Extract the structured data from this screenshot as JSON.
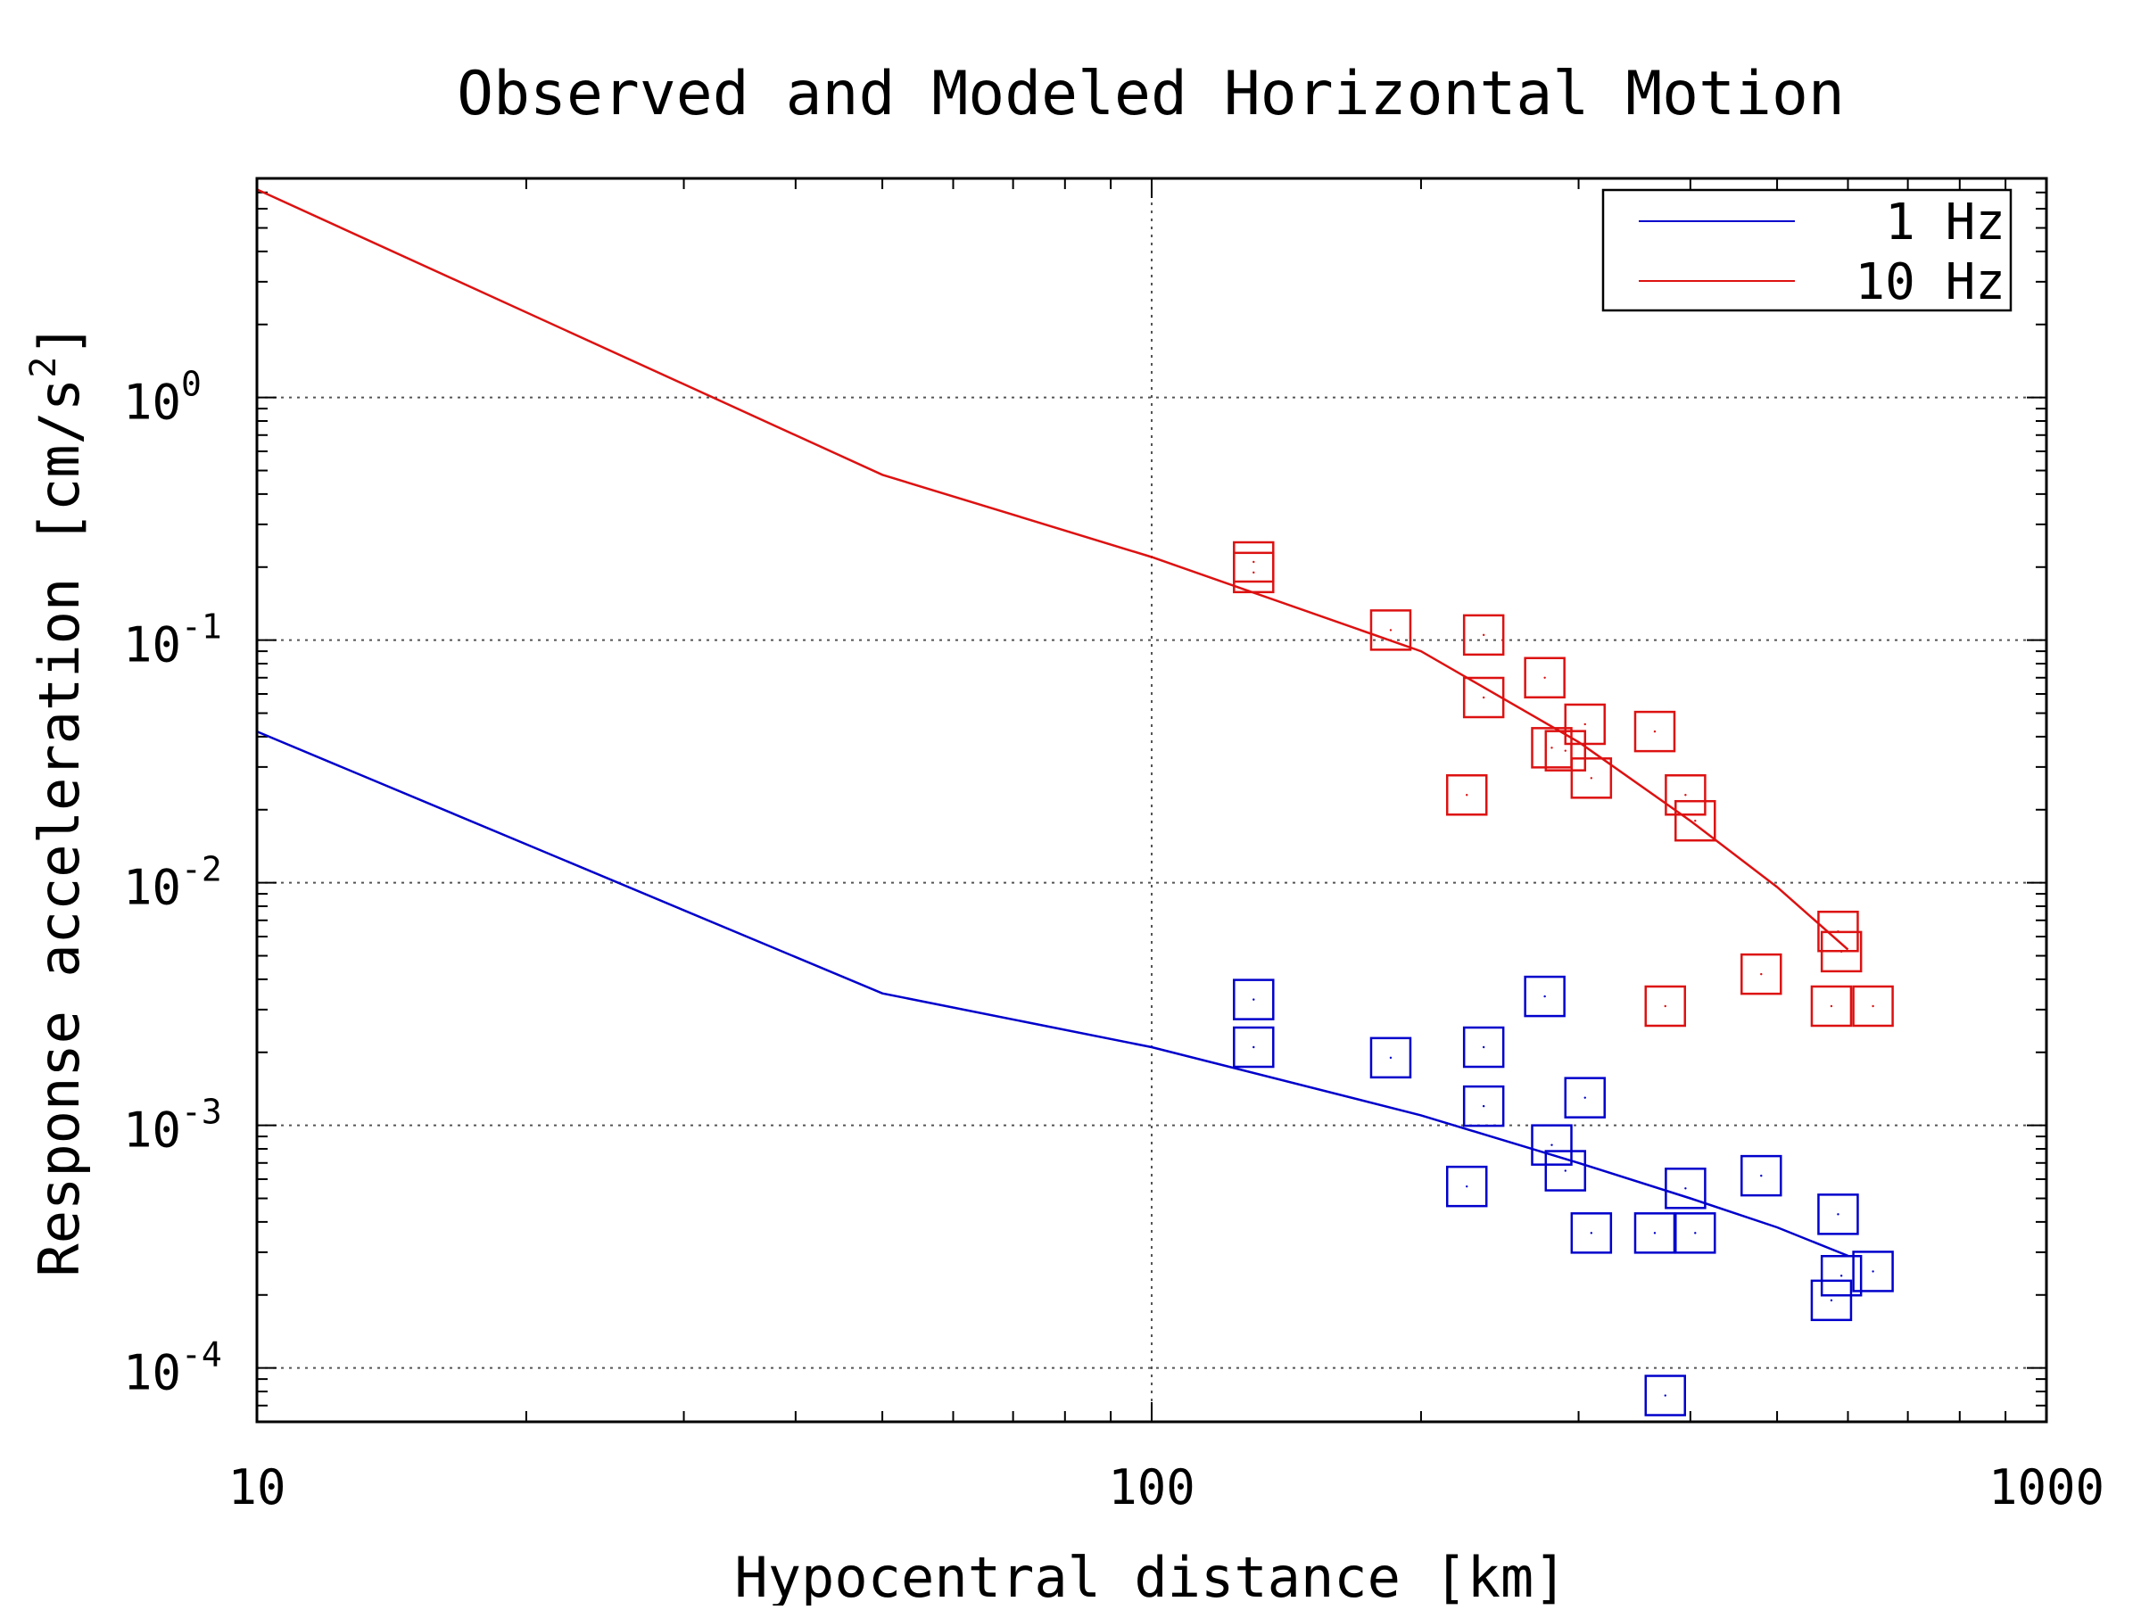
{
  "chart_data": {
    "type": "scatter",
    "title": "Observed and Modeled Horizontal Motion",
    "xlabel": "Hypocentral distance [km]",
    "ylabel_main": "Response acceleration [cm/s",
    "ylabel_sup": "2",
    "ylabel_close": "]",
    "x_scale": "log",
    "y_scale": "log",
    "xlim": [
      10,
      1000
    ],
    "ylim": [
      6e-05,
      8
    ],
    "x_ticks": [
      {
        "value": 10,
        "label": "10"
      },
      {
        "value": 100,
        "label": "100"
      },
      {
        "value": 1000,
        "label": "1000"
      }
    ],
    "y_ticks": [
      {
        "value": 0.0001,
        "base": "10",
        "exp": "-4"
      },
      {
        "value": 0.001,
        "base": "10",
        "exp": "-3"
      },
      {
        "value": 0.01,
        "base": "10",
        "exp": "-2"
      },
      {
        "value": 0.1,
        "base": "10",
        "exp": "-1"
      },
      {
        "value": 1,
        "base": "10",
        "exp": "0"
      }
    ],
    "grid": "dotted, at major ticks",
    "legend_position": "top-right",
    "series": [
      {
        "name": "1 Hz",
        "color": "#0000cc",
        "model_line": [
          [
            10,
            0.042
          ],
          [
            50,
            0.0035
          ],
          [
            100,
            0.0021
          ],
          [
            200,
            0.0011
          ],
          [
            300,
            0.0007
          ],
          [
            400,
            0.0005
          ],
          [
            500,
            0.00038
          ],
          [
            600,
            0.00029
          ]
        ],
        "observed": [
          [
            130,
            0.0033
          ],
          [
            130,
            0.0021
          ],
          [
            185,
            0.0019
          ],
          [
            225,
            0.00056
          ],
          [
            235,
            0.0021
          ],
          [
            235,
            0.0012
          ],
          [
            275,
            0.0034
          ],
          [
            280,
            0.00083
          ],
          [
            290,
            0.00065
          ],
          [
            305,
            0.0013
          ],
          [
            310,
            0.00036
          ],
          [
            365,
            0.00036
          ],
          [
            375,
            7.7e-05
          ],
          [
            395,
            0.00055
          ],
          [
            405,
            0.00036
          ],
          [
            480,
            0.00062
          ],
          [
            575,
            0.00019
          ],
          [
            585,
            0.00043
          ],
          [
            590,
            0.00024
          ],
          [
            640,
            0.00025
          ]
        ]
      },
      {
        "name": "10 Hz",
        "color": "#dd1111",
        "model_line": [
          [
            10,
            7.2
          ],
          [
            50,
            0.48
          ],
          [
            100,
            0.22
          ],
          [
            200,
            0.09
          ],
          [
            300,
            0.038
          ],
          [
            400,
            0.018
          ],
          [
            500,
            0.0096
          ],
          [
            600,
            0.0053
          ]
        ],
        "observed": [
          [
            130,
            0.21
          ],
          [
            130,
            0.19
          ],
          [
            185,
            0.11
          ],
          [
            225,
            0.023
          ],
          [
            235,
            0.105
          ],
          [
            235,
            0.058
          ],
          [
            275,
            0.07
          ],
          [
            280,
            0.036
          ],
          [
            290,
            0.035
          ],
          [
            305,
            0.045
          ],
          [
            310,
            0.027
          ],
          [
            365,
            0.042
          ],
          [
            375,
            0.0031
          ],
          [
            395,
            0.023
          ],
          [
            405,
            0.018
          ],
          [
            480,
            0.0042
          ],
          [
            575,
            0.0031
          ],
          [
            585,
            0.0063
          ],
          [
            590,
            0.0052
          ],
          [
            640,
            0.0031
          ]
        ]
      }
    ]
  }
}
